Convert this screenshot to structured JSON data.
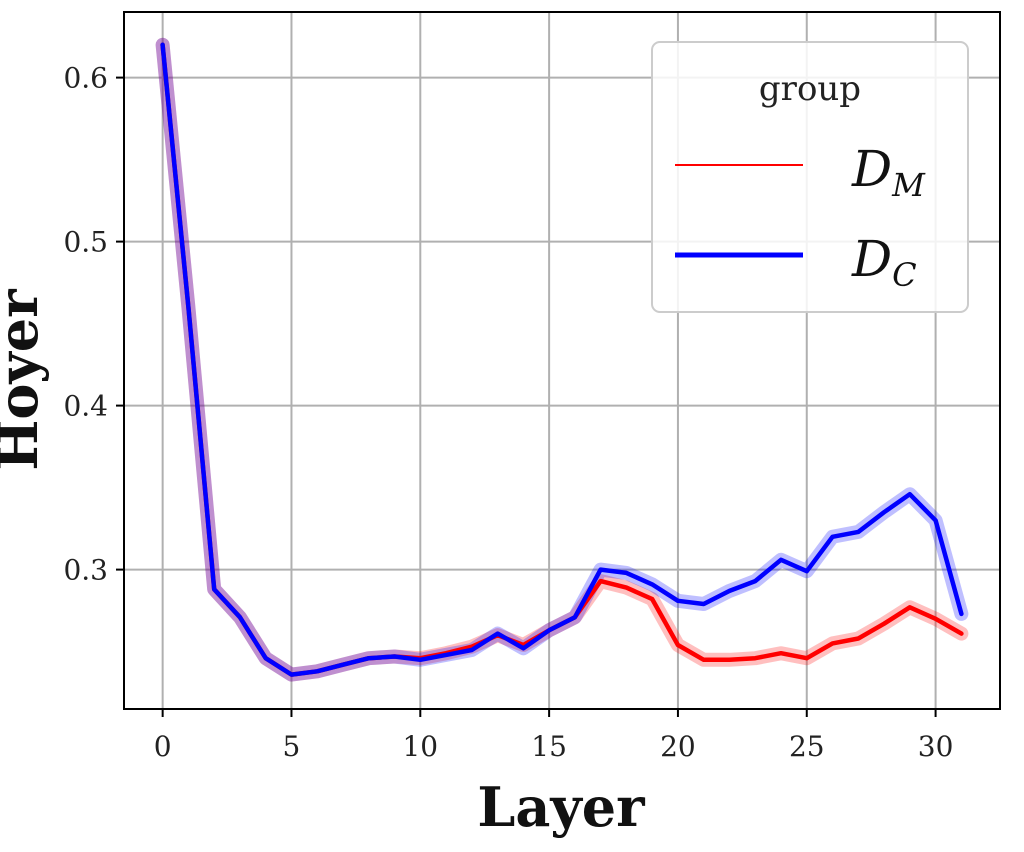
{
  "chart_data": {
    "type": "line",
    "title": "",
    "xlabel": "Layer",
    "ylabel": "Hoyer",
    "xlim": [
      -1.5,
      32.5
    ],
    "ylim": [
      0.215,
      0.64
    ],
    "xticks": [
      0,
      5,
      10,
      15,
      20,
      25,
      30
    ],
    "xtick_labels": [
      "0",
      "5",
      "10",
      "15",
      "20",
      "25",
      "30"
    ],
    "yticks": [
      0.3,
      0.4,
      0.5,
      0.6
    ],
    "ytick_labels": [
      "0.3",
      "0.4",
      "0.5",
      "0.6"
    ],
    "grid": true,
    "legend": {
      "title": "group",
      "position": "top-right",
      "entries": [
        {
          "base": "D",
          "sub": "M",
          "color": "#ff0000"
        },
        {
          "base": "D",
          "sub": "C",
          "color": "#0000ff"
        }
      ]
    },
    "x": [
      0,
      1,
      2,
      3,
      4,
      5,
      6,
      7,
      8,
      9,
      10,
      11,
      12,
      13,
      14,
      15,
      16,
      17,
      18,
      19,
      20,
      21,
      22,
      23,
      24,
      25,
      26,
      27,
      28,
      29,
      30,
      31
    ],
    "series": [
      {
        "name": "D_M",
        "color": "#ff0000",
        "values": [
          0.62,
          0.46,
          0.288,
          0.271,
          0.246,
          0.236,
          0.238,
          0.242,
          0.246,
          0.247,
          0.246,
          0.249,
          0.253,
          0.26,
          0.254,
          0.263,
          0.271,
          0.293,
          0.289,
          0.282,
          0.254,
          0.245,
          0.245,
          0.246,
          0.249,
          0.246,
          0.255,
          0.258,
          0.267,
          0.277,
          0.27,
          0.261
        ]
      },
      {
        "name": "D_C",
        "color": "#0000ff",
        "values": [
          0.62,
          0.46,
          0.288,
          0.271,
          0.246,
          0.236,
          0.238,
          0.242,
          0.246,
          0.247,
          0.245,
          0.248,
          0.251,
          0.261,
          0.252,
          0.263,
          0.271,
          0.3,
          0.298,
          0.291,
          0.281,
          0.279,
          0.287,
          0.293,
          0.306,
          0.299,
          0.32,
          0.323,
          0.335,
          0.346,
          0.33,
          0.273
        ]
      }
    ]
  }
}
